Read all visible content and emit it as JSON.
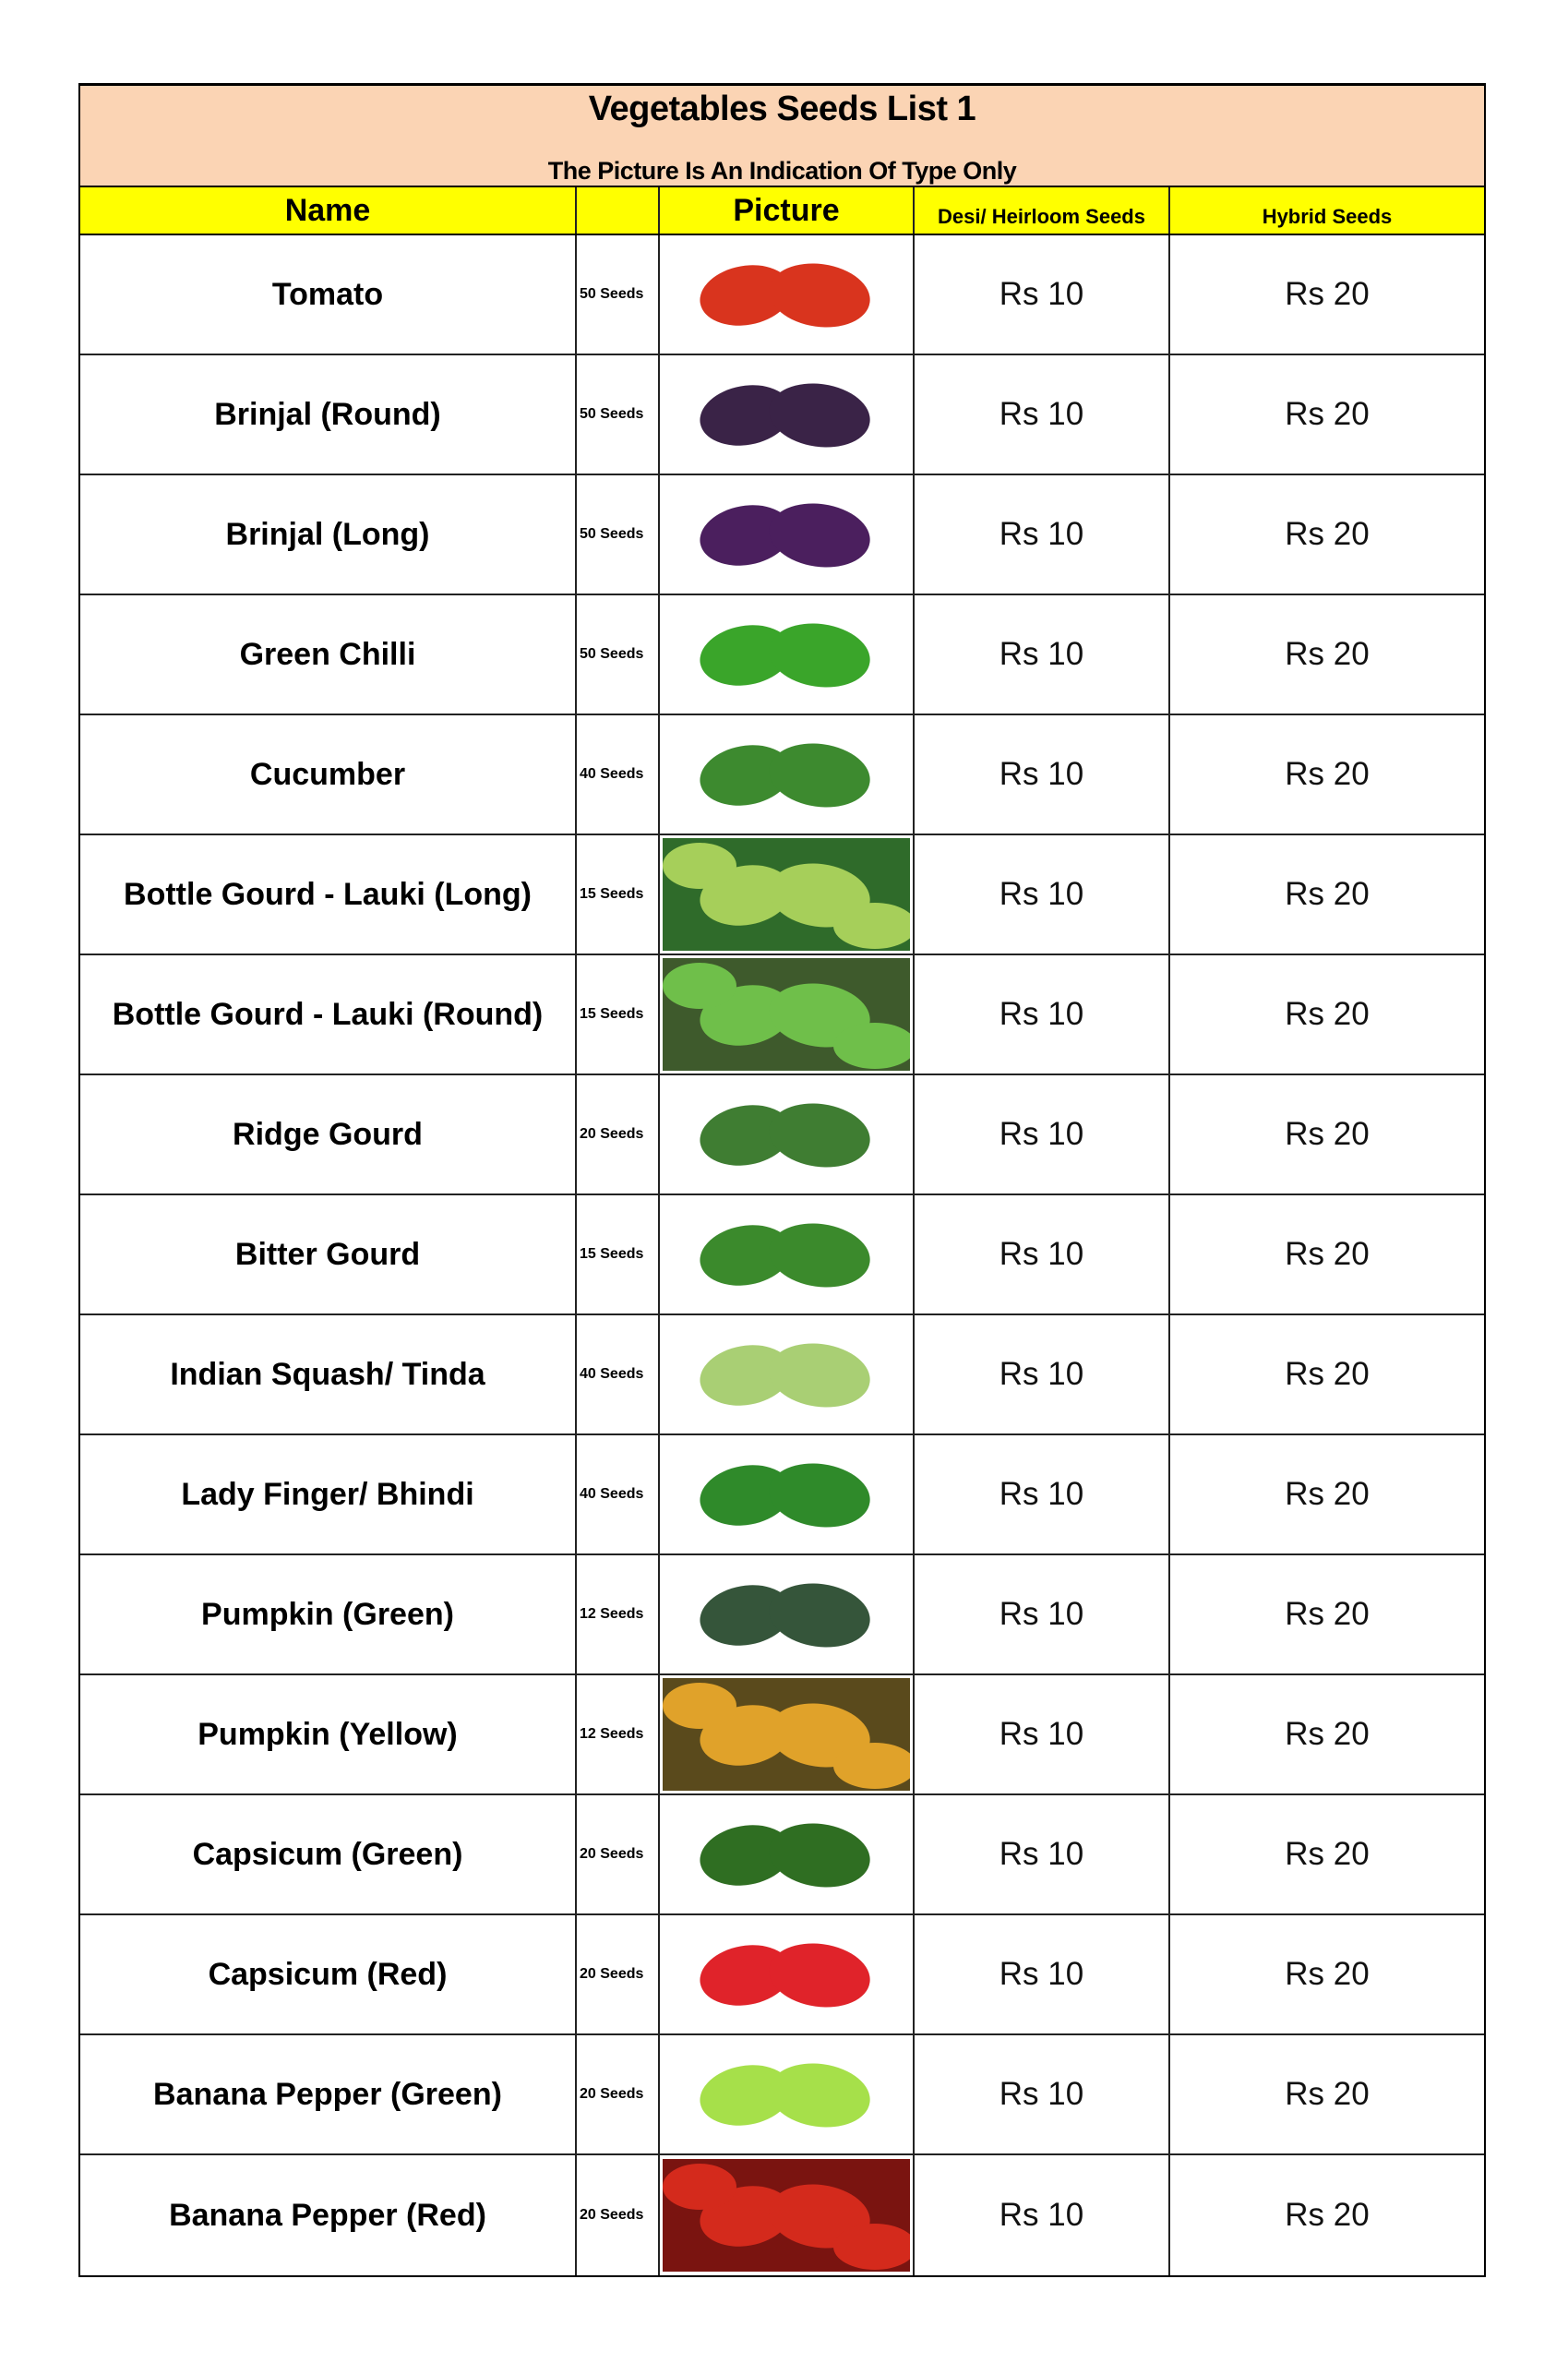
{
  "title": "Vegetables Seeds List 1",
  "subtitle": "The Picture Is An Indication Of Type Only",
  "headers": {
    "name": "Name",
    "seeds": "",
    "picture": "Picture",
    "desi": "Desi/ Heirloom Seeds",
    "hybrid": "Hybrid Seeds"
  },
  "rows": [
    {
      "name": "Tomato",
      "seeds": "50 Seeds",
      "picture": "tomato",
      "desi": "Rs 10",
      "hybrid": "Rs 20",
      "color": "#d9341e",
      "bg": "#ffffff"
    },
    {
      "name": "Brinjal (Round)",
      "seeds": "50 Seeds",
      "picture": "round-brinjal",
      "desi": "Rs 10",
      "hybrid": "Rs 20",
      "color": "#3a2347",
      "bg": "#ffffff"
    },
    {
      "name": "Brinjal (Long)",
      "seeds": "50 Seeds",
      "picture": "long-brinjal",
      "desi": "Rs 10",
      "hybrid": "Rs 20",
      "color": "#4b1f5e",
      "bg": "#ffffff"
    },
    {
      "name": "Green Chilli",
      "seeds": "50 Seeds",
      "picture": "green-chilli",
      "desi": "Rs 10",
      "hybrid": "Rs 20",
      "color": "#3aa52a",
      "bg": "#ffffff"
    },
    {
      "name": "Cucumber",
      "seeds": "40 Seeds",
      "picture": "cucumber",
      "desi": "Rs 10",
      "hybrid": "Rs 20",
      "color": "#3d8a2f",
      "bg": "#ffffff"
    },
    {
      "name": "Bottle Gourd - Lauki (Long)",
      "seeds": "15 Seeds",
      "picture": "long-bottle-gourd",
      "desi": "Rs 10",
      "hybrid": "Rs 20",
      "color": "#a6cf5a",
      "bg": "#2f6b2a"
    },
    {
      "name": "Bottle Gourd - Lauki (Round)",
      "seeds": "15 Seeds",
      "picture": "round-bottle-gourd",
      "desi": "Rs 10",
      "hybrid": "Rs 20",
      "color": "#6fbf4a",
      "bg": "#3e5a2c"
    },
    {
      "name": "Ridge Gourd",
      "seeds": "20 Seeds",
      "picture": "ridge-gourd",
      "desi": "Rs 10",
      "hybrid": "Rs 20",
      "color": "#3f7d32",
      "bg": "#ffffff"
    },
    {
      "name": "Bitter Gourd",
      "seeds": "15 Seeds",
      "picture": "bitter-gourd",
      "desi": "Rs 10",
      "hybrid": "Rs 20",
      "color": "#3b8a2c",
      "bg": "#ffffff"
    },
    {
      "name": "Indian Squash/ Tinda",
      "seeds": "40 Seeds",
      "picture": "tinda",
      "desi": "Rs 10",
      "hybrid": "Rs 20",
      "color": "#a9cf74",
      "bg": "#ffffff"
    },
    {
      "name": "Lady Finger/ Bhindi",
      "seeds": "40 Seeds",
      "picture": "okra",
      "desi": "Rs 10",
      "hybrid": "Rs 20",
      "color": "#2f8a2a",
      "bg": "#ffffff"
    },
    {
      "name": "Pumpkin (Green)",
      "seeds": "12 Seeds",
      "picture": "green-pumpkin",
      "desi": "Rs 10",
      "hybrid": "Rs 20",
      "color": "#35553a",
      "bg": "#ffffff"
    },
    {
      "name": "Pumpkin (Yellow)",
      "seeds": "12 Seeds",
      "picture": "yellow-pumpkin",
      "desi": "Rs 10",
      "hybrid": "Rs 20",
      "color": "#e0a22a",
      "bg": "#5a4a1c"
    },
    {
      "name": "Capsicum (Green)",
      "seeds": "20 Seeds",
      "picture": "green-capsicum",
      "desi": "Rs 10",
      "hybrid": "Rs 20",
      "color": "#2f6e22",
      "bg": "#ffffff"
    },
    {
      "name": "Capsicum (Red)",
      "seeds": "20 Seeds",
      "picture": "red-capsicum",
      "desi": "Rs 10",
      "hybrid": "Rs 20",
      "color": "#e0232a",
      "bg": "#ffffff"
    },
    {
      "name": "Banana Pepper (Green)",
      "seeds": "20 Seeds",
      "picture": "green-banana-pepper",
      "desi": "Rs 10",
      "hybrid": "Rs 20",
      "color": "#a6e04a",
      "bg": "#ffffff"
    },
    {
      "name": "Banana Pepper (Red)",
      "seeds": "20 Seeds",
      "picture": "red-banana-pepper",
      "desi": "Rs 10",
      "hybrid": "Rs 20",
      "color": "#d42a1c",
      "bg": "#7a1410"
    }
  ]
}
